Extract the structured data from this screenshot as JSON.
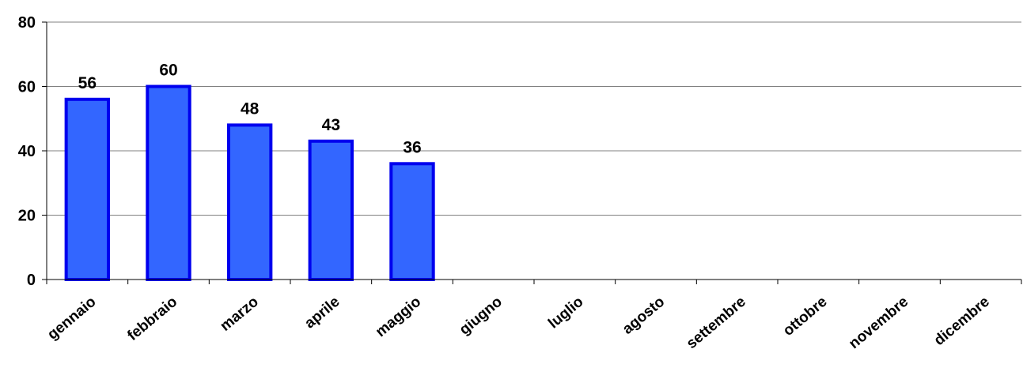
{
  "chart_data": {
    "type": "bar",
    "categories": [
      "gennaio",
      "febbraio",
      "marzo",
      "aprile",
      "maggio",
      "giugno",
      "luglio",
      "agosto",
      "settembre",
      "ottobre",
      "novembre",
      "dicembre"
    ],
    "values": [
      56,
      60,
      48,
      43,
      36,
      null,
      null,
      null,
      null,
      null,
      null,
      null
    ],
    "data_labels": [
      "56",
      "60",
      "48",
      "43",
      "36",
      "",
      "",
      "",
      "",
      "",
      "",
      ""
    ],
    "title": "",
    "xlabel": "",
    "ylabel": "",
    "ylim": [
      0,
      80
    ],
    "yticks": [
      0,
      20,
      40,
      60,
      80
    ],
    "ytick_labels": [
      "0",
      "20",
      "40",
      "60",
      "80"
    ],
    "grid": true,
    "legend": "none",
    "colors": {
      "bar_fill": "#3366ff",
      "bar_stroke": "#0000ee",
      "grid": "#808080",
      "axis": "#000000"
    }
  }
}
